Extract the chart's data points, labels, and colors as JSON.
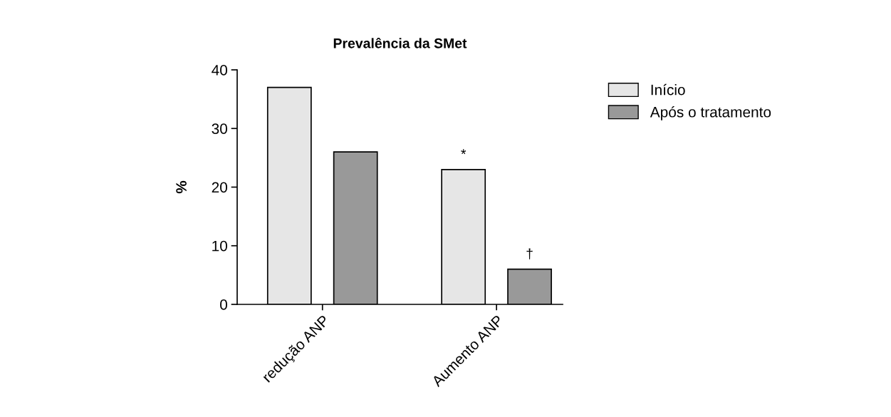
{
  "chart_data": {
    "type": "bar",
    "title": "Prevalência da SMet",
    "ylabel": "%",
    "categories": [
      "redução ANP",
      "Aumento ANP"
    ],
    "series": [
      {
        "name": "Início",
        "color": "#e6e6e6",
        "values": [
          37,
          23
        ]
      },
      {
        "name": "Após o tratamento",
        "color": "#999999",
        "values": [
          26,
          6
        ]
      }
    ],
    "annotations": [
      "*",
      "†"
    ],
    "ylim": [
      0,
      40
    ],
    "yticks": [
      0,
      10,
      20,
      30,
      40
    ],
    "grid": false,
    "legend": "top right"
  }
}
